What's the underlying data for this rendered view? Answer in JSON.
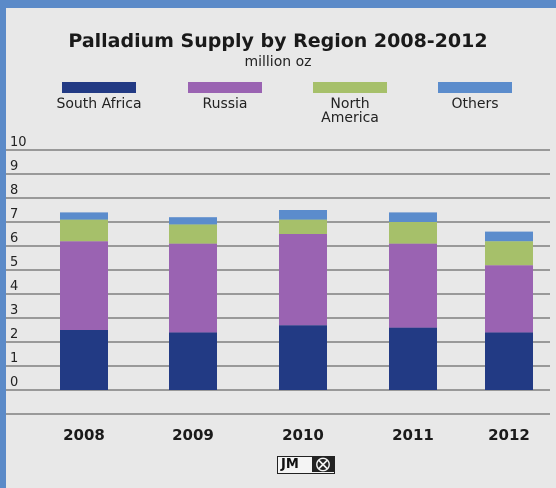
{
  "chart_data": {
    "type": "bar",
    "stacked": true,
    "title": "Palladium Supply by Region 2008-2012",
    "subtitle": "million oz",
    "categories": [
      "2008",
      "2009",
      "2010",
      "2011",
      "2012"
    ],
    "series": [
      {
        "name": "South Africa",
        "color": "#223a84",
        "values": [
          2.5,
          2.4,
          2.7,
          2.6,
          2.4
        ]
      },
      {
        "name": "Russia",
        "color": "#9a63b2",
        "values": [
          3.7,
          3.7,
          3.8,
          3.5,
          2.8
        ]
      },
      {
        "name": "North America",
        "color": "#a6c06a",
        "values": [
          0.9,
          0.8,
          0.6,
          0.9,
          1.0
        ]
      },
      {
        "name": "Others",
        "color": "#5b8ccc",
        "values": [
          0.3,
          0.3,
          0.4,
          0.4,
          0.4
        ]
      }
    ],
    "legend_labels": [
      "South Africa",
      "Russia",
      "North\nAmerica",
      "Others"
    ],
    "y_ticks": [
      0,
      1,
      2,
      3,
      4,
      5,
      6,
      7,
      8,
      9,
      10
    ],
    "ylim": [
      0,
      10
    ],
    "grid": true,
    "legend_position": "top"
  },
  "logo": {
    "text": "JM"
  },
  "colors": {
    "border": "#5b8ac8",
    "background": "#e8e8e8",
    "gridline": "#4a4a4a"
  }
}
